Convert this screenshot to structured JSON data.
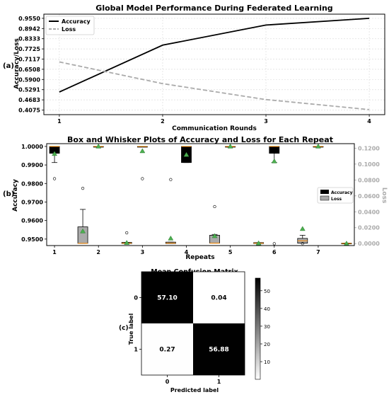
{
  "chart_data": [
    {
      "type": "line",
      "panel_label": "(a)",
      "title": "Global Model Performance During Federated Learning",
      "xlabel": "Communication Rounds",
      "ylabel": "Accuracy/Loss",
      "x": [
        1,
        2,
        3,
        4
      ],
      "x_ticks": [
        "1",
        "2",
        "3",
        "4"
      ],
      "y_ticks": [
        "0.4075",
        "0.4683",
        "0.5291",
        "0.5900",
        "0.6508",
        "0.7117",
        "0.7725",
        "0.8333",
        "0.8942",
        "0.9550"
      ],
      "ylim": [
        0.38,
        0.98
      ],
      "xlim": [
        0.85,
        4.15
      ],
      "grid": true,
      "legend_position": "top-left",
      "series": [
        {
          "name": "Accuracy",
          "color": "#000000",
          "style": "solid",
          "values": [
            0.515,
            0.795,
            0.915,
            0.955
          ]
        },
        {
          "name": "Loss",
          "color": "#aaaaaa",
          "style": "dashed",
          "values": [
            0.695,
            0.565,
            0.47,
            0.41
          ]
        }
      ]
    },
    {
      "type": "box",
      "panel_label": "(b)",
      "title": "Box and Whisker Plots of Accuracy and Loss for Each Repeat",
      "xlabel": "Repeats",
      "ylabel": "Accuracy",
      "y2label": "Loss",
      "categories": [
        "1",
        "2",
        "3",
        "4",
        "5",
        "6",
        "7"
      ],
      "y_ticks": [
        "0.9500",
        "0.9600",
        "0.9700",
        "0.9800",
        "0.9900",
        "1.0000"
      ],
      "ylim": [
        0.9465,
        1.0015
      ],
      "y2_ticks": [
        "0.0000",
        "0.0200",
        "0.0400",
        "0.0600",
        "0.0800",
        "0.1000",
        "0.1200"
      ],
      "y2lim": [
        -0.0025,
        0.1257
      ],
      "legend_position": "center-right",
      "colors": {
        "accuracy": "#000000",
        "loss": "#aaaaaa",
        "mean": "#4caf50",
        "median": "#ff8c00"
      },
      "accuracy": [
        {
          "q1": 0.9963,
          "q3": 1.0,
          "median": 1.0,
          "wlo": 0.9913,
          "whi": 1.0,
          "mean": 0.996,
          "outliers": [
            0.9826
          ]
        },
        {
          "q1": 1.0,
          "q3": 1.0,
          "median": 1.0,
          "wlo": 1.0,
          "whi": 1.0,
          "mean": 1.0,
          "outliers": []
        },
        {
          "q1": 1.0,
          "q3": 1.0,
          "median": 1.0,
          "wlo": 1.0,
          "whi": 1.0,
          "mean": 0.9975,
          "outliers": [
            0.9826
          ]
        },
        {
          "q1": 0.9913,
          "q3": 1.0,
          "median": 1.0,
          "wlo": 0.9913,
          "whi": 1.0,
          "mean": 0.9955,
          "outliers": []
        },
        {
          "q1": 1.0,
          "q3": 1.0,
          "median": 1.0,
          "wlo": 1.0,
          "whi": 1.0,
          "mean": 1.0,
          "outliers": []
        },
        {
          "q1": 0.9963,
          "q3": 1.0,
          "median": 1.0,
          "wlo": 0.9913,
          "whi": 1.0,
          "mean": 0.992,
          "outliers": [
            0.9475
          ]
        },
        {
          "q1": 1.0,
          "q3": 1.0,
          "median": 1.0,
          "wlo": 1.0,
          "whi": 1.0,
          "mean": 1.0,
          "outliers": []
        }
      ],
      "loss": [
        {
          "q1": 0.0003,
          "q3": 0.021,
          "median": 0.0003,
          "wlo": 0.0003,
          "whi": 0.043,
          "mean": 0.0155,
          "outliers": [
            0.0695
          ]
        },
        {
          "q1": 0.0001,
          "q3": 0.0015,
          "median": 0.0005,
          "wlo": 0.0001,
          "whi": 0.0015,
          "mean": 0.001,
          "outliers": [
            0.0135
          ]
        },
        {
          "q1": 0.0001,
          "q3": 0.0018,
          "median": 0.0005,
          "wlo": 0.0001,
          "whi": 0.0018,
          "mean": 0.0065,
          "outliers": [
            0.0805
          ]
        },
        {
          "q1": 0.0005,
          "q3": 0.0105,
          "median": 0.0005,
          "wlo": 0.0005,
          "whi": 0.0115,
          "mean": 0.0095,
          "outliers": [
            0.0465
          ]
        },
        {
          "q1": 0.0001,
          "q3": 0.0012,
          "median": 0.0005,
          "wlo": 0.0001,
          "whi": 0.0012,
          "mean": 0.0004,
          "outliers": []
        },
        {
          "q1": 0.0005,
          "q3": 0.0065,
          "median": 0.0035,
          "wlo": 0.0005,
          "whi": 0.0105,
          "mean": 0.0185,
          "outliers": [
            0.0
          ]
        },
        {
          "q1": 0.0001,
          "q3": 0.0005,
          "median": 0.0002,
          "wlo": 0.0001,
          "whi": 0.0005,
          "mean": 0.0001,
          "outliers": []
        }
      ],
      "legend": [
        "Accuracy",
        "Loss"
      ]
    },
    {
      "type": "heatmap",
      "panel_label": "(c)",
      "title": "Mean Confusion Matrix",
      "xlabel": "Predicted label",
      "ylabel": "True label",
      "x_ticks": [
        "0",
        "1"
      ],
      "y_ticks": [
        "0",
        "1"
      ],
      "values": [
        [
          57.1,
          0.04
        ],
        [
          0.27,
          56.88
        ]
      ],
      "cell_labels": [
        [
          "57.10",
          "0.04"
        ],
        [
          "0.27",
          "56.88"
        ]
      ],
      "colorbar_ticks": [
        "10",
        "20",
        "30",
        "40",
        "50"
      ],
      "vmin": 0.04,
      "vmax": 57.1
    }
  ]
}
